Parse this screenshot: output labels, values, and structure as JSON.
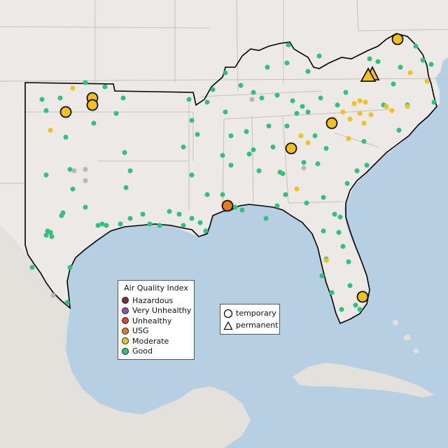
{
  "legend": {
    "title": "Air Quality Index",
    "categories": [
      {
        "label": "Hazardous",
        "color": "#7e2f2f"
      },
      {
        "label": "Very Unhealthy",
        "color": "#8e52b5"
      },
      {
        "label": "Unhealthy",
        "color": "#e2432f"
      },
      {
        "label": "USG",
        "color": "#e57b1e"
      },
      {
        "label": "Moderate",
        "color": "#f2c21b"
      },
      {
        "label": "Good",
        "color": "#2ec37a"
      }
    ],
    "monitor_types": [
      {
        "label": "temporary",
        "icon": "circle-icon"
      },
      {
        "label": "permanent",
        "icon": "triangle-icon"
      }
    ]
  },
  "colors": {
    "ocean": "#b6cfe3",
    "land": "#ece9e6",
    "mexico_land": "#e4e1dc",
    "borders": "#c4c1bd",
    "region_outline": "#000000",
    "no_data": "#b7b7b7"
  }
}
